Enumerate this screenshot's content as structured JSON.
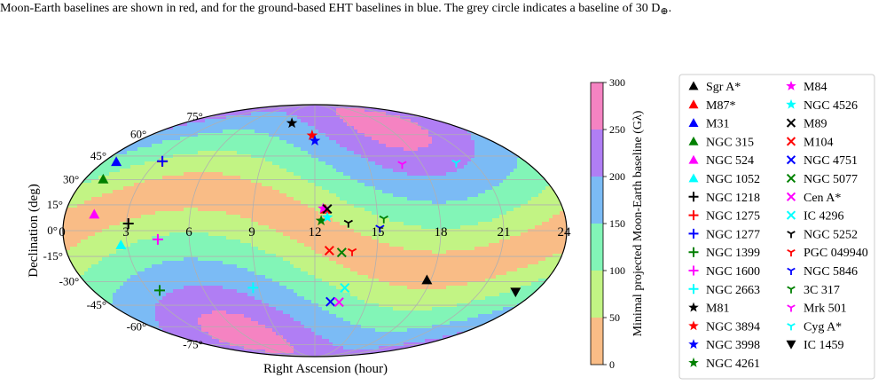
{
  "caption": {
    "line1": "Moon-Earth baselines are shown in red, and for the ground-based EHT baselines in blue. The grey circle indicates a baseline of 30 D",
    "line1_sub": "⊕",
    "line1_end": "."
  },
  "chart_data": {
    "type": "scatter",
    "projection": "mollweide",
    "xlabel": "Right Ascension (hour)",
    "ylabel": "Declination (deg)",
    "x_ticks": [
      "3",
      "6",
      "9",
      "12",
      "15",
      "18",
      "21",
      "24"
    ],
    "x_ticks_left": "0",
    "y_ticks": [
      "75°",
      "60°",
      "45°",
      "30°",
      "15°",
      "0°",
      "-15°",
      "-30°",
      "-45°",
      "-60°",
      "-75°"
    ],
    "colorbar": {
      "label": "Minimal projected Moon-Earth baseline (Gλ)",
      "ticks": [
        "0",
        "50",
        "100",
        "150",
        "200",
        "250",
        "300"
      ],
      "range": [
        0,
        300
      ],
      "bands": [
        {
          "from": 0,
          "to": 50,
          "color": "#f9bc86"
        },
        {
          "from": 50,
          "to": 100,
          "color": "#c2f484"
        },
        {
          "from": 100,
          "to": 150,
          "color": "#82f5b7"
        },
        {
          "from": 150,
          "to": 200,
          "color": "#7bbbf5"
        },
        {
          "from": 200,
          "to": 250,
          "color": "#b07ef4"
        },
        {
          "from": 250,
          "to": 300,
          "color": "#f583c2"
        }
      ]
    },
    "legend_position": "right",
    "sources": [
      {
        "name": "Sgr A*",
        "marker": "triangle-up",
        "color": "#000000",
        "ra": 17.8,
        "dec": -29.0
      },
      {
        "name": "M87*",
        "marker": "triangle-up",
        "color": "#ff0000",
        "ra": 12.5,
        "dec": 12.4
      },
      {
        "name": "M31",
        "marker": "triangle-up",
        "color": "#0000ff",
        "ra": 0.7,
        "dec": 41.3
      },
      {
        "name": "NGC 315",
        "marker": "triangle-up",
        "color": "#008000",
        "ra": 0.95,
        "dec": 30.4
      },
      {
        "name": "NGC 524",
        "marker": "triangle-up",
        "color": "#ff00ff",
        "ra": 1.4,
        "dec": 9.5
      },
      {
        "name": "NGC 1052",
        "marker": "triangle-up",
        "color": "#00ffff",
        "ra": 2.7,
        "dec": -8.3
      },
      {
        "name": "NGC 1218",
        "marker": "plus",
        "color": "#000000",
        "ra": 3.1,
        "dec": 4.1
      },
      {
        "name": "NGC 1275",
        "marker": "plus",
        "color": "#ff0000",
        "ra": 3.3,
        "dec": 41.5
      },
      {
        "name": "NGC 1277",
        "marker": "plus",
        "color": "#0000ff",
        "ra": 3.3,
        "dec": 41.6
      },
      {
        "name": "NGC 1399",
        "marker": "plus",
        "color": "#008000",
        "ra": 3.6,
        "dec": -35.5
      },
      {
        "name": "NGC 1600",
        "marker": "plus",
        "color": "#ff00ff",
        "ra": 4.5,
        "dec": -5.1
      },
      {
        "name": "NGC 2663",
        "marker": "plus",
        "color": "#00ffff",
        "ra": 8.7,
        "dec": -33.8
      },
      {
        "name": "M81",
        "marker": "star",
        "color": "#000000",
        "ra": 9.9,
        "dec": 69.1
      },
      {
        "name": "NGC 3894",
        "marker": "star",
        "color": "#ff0000",
        "ra": 11.8,
        "dec": 59.4
      },
      {
        "name": "NGC 3998",
        "marker": "star",
        "color": "#0000ff",
        "ra": 12.0,
        "dec": 55.5
      },
      {
        "name": "NGC 4261",
        "marker": "star",
        "color": "#008000",
        "ra": 12.3,
        "dec": 5.8
      },
      {
        "name": "M84",
        "marker": "star",
        "color": "#ff00ff",
        "ra": 12.4,
        "dec": 12.9
      },
      {
        "name": "NGC 4526",
        "marker": "star",
        "color": "#00ffff",
        "ra": 12.6,
        "dec": 7.7
      },
      {
        "name": "M89",
        "marker": "x",
        "color": "#000000",
        "ra": 12.6,
        "dec": 12.6
      },
      {
        "name": "M104",
        "marker": "x",
        "color": "#ff0000",
        "ra": 12.7,
        "dec": -11.6
      },
      {
        "name": "NGC 4751",
        "marker": "x",
        "color": "#0000ff",
        "ra": 12.9,
        "dec": -42.7
      },
      {
        "name": "NGC 5077",
        "marker": "x",
        "color": "#008000",
        "ra": 13.3,
        "dec": -12.7
      },
      {
        "name": "Cen A*",
        "marker": "x",
        "color": "#ff00ff",
        "ra": 13.4,
        "dec": -43.0
      },
      {
        "name": "IC 4296",
        "marker": "x",
        "color": "#00ffff",
        "ra": 13.6,
        "dec": -33.9
      },
      {
        "name": "NGC 5252",
        "marker": "tri-down",
        "color": "#000000",
        "ra": 13.6,
        "dec": 4.5
      },
      {
        "name": "PGC 049940",
        "marker": "tri-down",
        "color": "#ff0000",
        "ra": 13.8,
        "dec": -12.0
      },
      {
        "name": "NGC 5846",
        "marker": "tri-down",
        "color": "#0000ff",
        "ra": 15.1,
        "dec": 1.6
      },
      {
        "name": "3C 317",
        "marker": "tri-down",
        "color": "#008000",
        "ra": 15.3,
        "dec": 7.0
      },
      {
        "name": "Mrk 501",
        "marker": "tri-down",
        "color": "#ff00ff",
        "ra": 16.9,
        "dec": 39.8
      },
      {
        "name": "Cyg A*",
        "marker": "tri-down",
        "color": "#00ffff",
        "ra": 20.0,
        "dec": 40.7
      },
      {
        "name": "IC 1459",
        "marker": "triangle-down",
        "color": "#000000",
        "ra": 22.95,
        "dec": -36.5
      }
    ]
  }
}
